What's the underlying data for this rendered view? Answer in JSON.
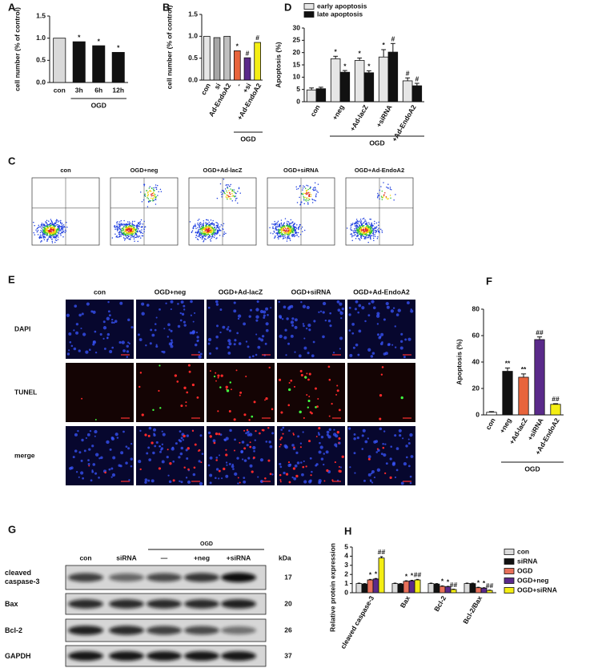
{
  "chart_data": [
    {
      "panel": "A",
      "type": "bar",
      "ylabel": "cell number (% of control)",
      "categories": [
        "con",
        "3h",
        "6h",
        "12h"
      ],
      "values": [
        1.0,
        0.92,
        0.83,
        0.68
      ],
      "colors": [
        "#d9d9d9",
        "#111111",
        "#111111",
        "#111111"
      ],
      "annotations": [
        null,
        "*",
        "*",
        "*"
      ],
      "group_label": "OGD",
      "ylim": [
        0,
        1.5
      ],
      "yticks": [
        {
          "value": 0,
          "label": "0.0"
        },
        {
          "value": 0.5,
          "label": "0.5"
        },
        {
          "value": 1,
          "label": "1.0"
        },
        {
          "value": 1.5,
          "label": "1.5"
        }
      ]
    },
    {
      "panel": "B",
      "type": "bar",
      "ylabel": "cell number (% of control)",
      "categories": [
        "con",
        "si",
        "Ad-EndoA2",
        "-",
        "+si",
        "+Ad-EndoA2"
      ],
      "values": [
        1.0,
        0.97,
        1.0,
        0.67,
        0.51,
        0.86
      ],
      "colors": [
        "#e6e6e6",
        "#a6a6a6",
        "#bfbfbf",
        "#e8643c",
        "#5a2a8a",
        "#f4ee14"
      ],
      "annotations": [
        null,
        null,
        null,
        "*",
        "#",
        "#"
      ],
      "group_label": "OGD",
      "ylim": [
        0,
        1.5
      ],
      "yticks": [
        {
          "value": 0,
          "label": "0.0"
        },
        {
          "value": 0.5,
          "label": "0.5"
        },
        {
          "value": 1,
          "label": "1.0"
        },
        {
          "value": 1.5,
          "label": "1.5"
        }
      ]
    },
    {
      "panel": "D",
      "type": "grouped_bar",
      "ylabel": "Apoptosis (%)",
      "categories": [
        "con",
        "+neg",
        "+Ad-lacZ",
        "+siRNA",
        "+Ad-EndoA2"
      ],
      "series": [
        {
          "name": "early apoptosis",
          "color": "#e6e6e6",
          "values": [
            4.8,
            17.5,
            16.8,
            18.2,
            8.5
          ],
          "errors": [
            0.8,
            1.0,
            1.0,
            3.0,
            1.2
          ],
          "annotations": [
            null,
            "*",
            "*",
            "*",
            "#"
          ]
        },
        {
          "name": "late apoptosis",
          "color": "#111111",
          "values": [
            5.3,
            12.0,
            11.8,
            20.2,
            6.5
          ],
          "errors": [
            0.6,
            0.7,
            0.8,
            3.5,
            1.0
          ],
          "annotations": [
            null,
            "*",
            "*",
            "#",
            "#"
          ]
        }
      ],
      "legend": "upper left",
      "group_label": "OGD",
      "ylim": [
        0,
        30
      ],
      "yticks": [
        0,
        5,
        10,
        15,
        20,
        25,
        30
      ]
    },
    {
      "panel": "F",
      "type": "bar",
      "ylabel": "Apoptosis (%)",
      "categories": [
        "con",
        "+neg",
        "+Ad-lacZ",
        "+siRNA",
        "+Ad-EndoA2"
      ],
      "values": [
        2,
        33,
        28.5,
        57,
        8
      ],
      "errors": [
        0.5,
        2.5,
        2.5,
        2.0,
        0.5
      ],
      "colors": [
        "#ffffff",
        "#111111",
        "#e8643c",
        "#5a2a8a",
        "#f4ee14"
      ],
      "annotations": [
        null,
        "**",
        "**",
        "##",
        "##"
      ],
      "group_label": "OGD",
      "ylim": [
        0,
        80
      ],
      "yticks": [
        0,
        20,
        40,
        60,
        80
      ]
    },
    {
      "panel": "H",
      "type": "grouped_bar",
      "ylabel": "Relative protein expression",
      "categories": [
        "cleaved caspase-3",
        "Bax",
        "Bcl-2",
        "Bcl-2/Bax"
      ],
      "series": [
        {
          "name": "con",
          "color": "#dcdcdc",
          "values": [
            1.0,
            1.0,
            1.0,
            1.0
          ],
          "errors": [
            0.05,
            0.05,
            0.05,
            0.05
          ],
          "annotations": [
            null,
            null,
            null,
            null
          ]
        },
        {
          "name": "siRNA",
          "color": "#111111",
          "values": [
            0.95,
            0.95,
            0.95,
            1.0
          ],
          "errors": [
            0.05,
            0.05,
            0.05,
            0.05
          ],
          "annotations": [
            null,
            null,
            null,
            null
          ]
        },
        {
          "name": "OGD",
          "color": "#e8705a",
          "values": [
            1.4,
            1.25,
            0.7,
            0.55
          ],
          "errors": [
            0.06,
            0.06,
            0.05,
            0.05
          ],
          "annotations": [
            "*",
            "*",
            "*",
            "*"
          ]
        },
        {
          "name": "OGD+neg",
          "color": "#5a2a8a",
          "values": [
            1.5,
            1.3,
            0.65,
            0.5
          ],
          "errors": [
            0.06,
            0.06,
            0.05,
            0.05
          ],
          "annotations": [
            "*",
            "*",
            "*",
            "*"
          ]
        },
        {
          "name": "OGD+siRNA",
          "color": "#f4ee14",
          "values": [
            3.8,
            1.4,
            0.35,
            0.25
          ],
          "errors": [
            0.15,
            0.06,
            0.04,
            0.04
          ],
          "annotations": [
            "##",
            "##",
            "##",
            "##"
          ]
        }
      ],
      "legend": "right",
      "ylim": [
        0,
        5
      ],
      "yticks": [
        0,
        1,
        2,
        3,
        4,
        5
      ]
    }
  ],
  "flow_cytometry": {
    "panel": "C",
    "titles": [
      "con",
      "OGD+neg",
      "OGD+Ad-lacZ",
      "OGD+siRNA",
      "OGD+Ad-EndoA2"
    ]
  },
  "tunel_staining": {
    "panel": "E",
    "columns": [
      "con",
      "OGD+neg",
      "OGD+Ad-lacZ",
      "OGD+siRNA",
      "OGD+Ad-EndoA2"
    ],
    "rows": [
      "DAPI",
      "TUNEL",
      "merge"
    ]
  },
  "western_blot": {
    "panel": "G",
    "group_label": "OGD",
    "columns": [
      "con",
      "siRNA",
      "—",
      "+neg",
      "+siRNA"
    ],
    "unit_header": "kDa",
    "rows": [
      {
        "label": "cleaved caspase-3",
        "kda": 17
      },
      {
        "label": "Bax",
        "kda": 20
      },
      {
        "label": "Bcl-2",
        "kda": 26
      },
      {
        "label": "GAPDH",
        "kda": 37
      }
    ]
  }
}
